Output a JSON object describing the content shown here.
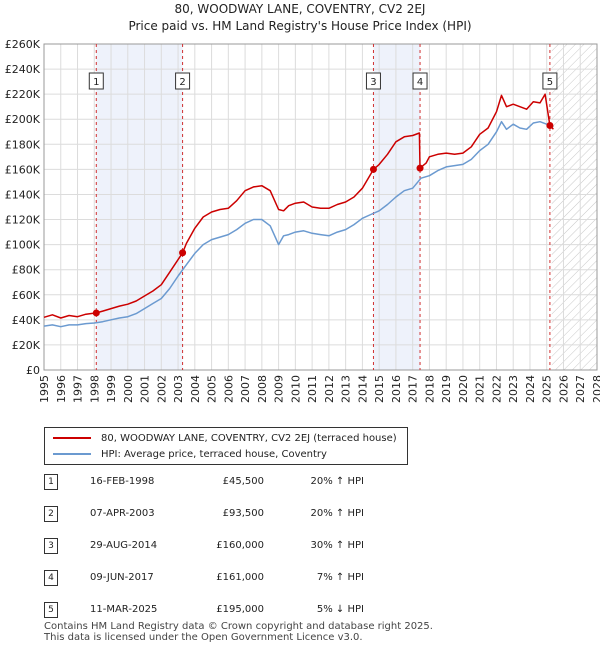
{
  "header": {
    "title_line1": "80, WOODWAY LANE, COVENTRY, CV2 2EJ",
    "title_line2": "Price paid vs. HM Land Registry's House Price Index (HPI)"
  },
  "chart_data": {
    "type": "line",
    "title": "80, WOODWAY LANE, COVENTRY, CV2 2EJ — Price paid vs. HM Land Registry's House Price Index (HPI)",
    "xlabel": "",
    "ylabel": "",
    "xlim": [
      1995,
      2028
    ],
    "ylim": [
      0,
      260000
    ],
    "y_ticks": [
      0,
      20000,
      40000,
      60000,
      80000,
      100000,
      120000,
      140000,
      160000,
      180000,
      200000,
      220000,
      240000,
      260000
    ],
    "y_tick_labels": [
      "£0",
      "£20K",
      "£40K",
      "£60K",
      "£80K",
      "£100K",
      "£120K",
      "£140K",
      "£160K",
      "£180K",
      "£200K",
      "£220K",
      "£240K",
      "£260K"
    ],
    "x_ticks": [
      1995,
      1996,
      1997,
      1998,
      1999,
      2000,
      2001,
      2002,
      2003,
      2004,
      2005,
      2006,
      2007,
      2008,
      2009,
      2010,
      2011,
      2012,
      2013,
      2014,
      2015,
      2016,
      2017,
      2018,
      2019,
      2020,
      2021,
      2022,
      2023,
      2024,
      2025,
      2026,
      2027,
      2028
    ],
    "grid": true,
    "future_shaded_from": 2025.3,
    "series": [
      {
        "name": "80, WOODWAY LANE, COVENTRY, CV2 2EJ (terraced house)",
        "color": "#cc0000",
        "x": [
          1995.0,
          1995.5,
          1996.0,
          1996.5,
          1997.0,
          1997.5,
          1998.12,
          1998.5,
          1999.0,
          1999.5,
          2000.0,
          2000.5,
          2001.0,
          2001.5,
          2002.0,
          2002.5,
          2003.27,
          2003.5,
          2004.0,
          2004.5,
          2005.0,
          2005.5,
          2006.0,
          2006.5,
          2007.0,
          2007.5,
          2008.0,
          2008.5,
          2009.0,
          2009.3,
          2009.6,
          2010.0,
          2010.5,
          2011.0,
          2011.5,
          2012.0,
          2012.5,
          2013.0,
          2013.5,
          2014.0,
          2014.66,
          2015.0,
          2015.5,
          2016.0,
          2016.5,
          2017.0,
          2017.4,
          2017.44,
          2017.8,
          2018.0,
          2018.5,
          2019.0,
          2019.5,
          2020.0,
          2020.5,
          2021.0,
          2021.5,
          2022.0,
          2022.3,
          2022.6,
          2023.0,
          2023.4,
          2023.8,
          2024.2,
          2024.6,
          2024.9,
          2025.19,
          2025.4
        ],
        "values": [
          42000,
          44000,
          41500,
          43500,
          42500,
          44500,
          45500,
          47000,
          49000,
          51000,
          52500,
          55000,
          59000,
          63000,
          68000,
          78000,
          93500,
          101000,
          113000,
          122000,
          126000,
          128000,
          129000,
          135000,
          143000,
          146000,
          147000,
          143000,
          128000,
          127000,
          131000,
          133000,
          134000,
          130000,
          129000,
          129000,
          132000,
          134000,
          138000,
          145000,
          160000,
          164000,
          172000,
          182000,
          186000,
          187000,
          189000,
          161000,
          165000,
          170000,
          172000,
          173000,
          172000,
          173000,
          178000,
          188000,
          193000,
          206000,
          219000,
          210000,
          212000,
          210000,
          208000,
          214000,
          213000,
          220000,
          195000,
          192000
        ]
      },
      {
        "name": "HPI: Average price, terraced house, Coventry",
        "color": "#6b9ad0",
        "x": [
          1995.0,
          1995.5,
          1996.0,
          1996.5,
          1997.0,
          1997.5,
          1998.0,
          1998.5,
          1999.0,
          1999.5,
          2000.0,
          2000.5,
          2001.0,
          2001.5,
          2002.0,
          2002.5,
          2003.0,
          2003.5,
          2004.0,
          2004.5,
          2005.0,
          2005.5,
          2006.0,
          2006.5,
          2007.0,
          2007.5,
          2008.0,
          2008.5,
          2009.0,
          2009.3,
          2009.6,
          2010.0,
          2010.5,
          2011.0,
          2011.5,
          2012.0,
          2012.5,
          2013.0,
          2013.5,
          2014.0,
          2014.5,
          2015.0,
          2015.5,
          2016.0,
          2016.5,
          2017.0,
          2017.5,
          2018.0,
          2018.5,
          2019.0,
          2019.5,
          2020.0,
          2020.5,
          2021.0,
          2021.5,
          2022.0,
          2022.3,
          2022.6,
          2023.0,
          2023.4,
          2023.8,
          2024.2,
          2024.6,
          2025.0,
          2025.4
        ],
        "values": [
          35000,
          36000,
          34500,
          36000,
          36000,
          37000,
          37500,
          38500,
          40000,
          41500,
          42500,
          45000,
          49000,
          53000,
          57000,
          65000,
          75000,
          84000,
          93000,
          100000,
          104000,
          106000,
          108000,
          112000,
          117000,
          120000,
          120000,
          115000,
          100000,
          107000,
          108000,
          110000,
          111000,
          109000,
          108000,
          107000,
          110000,
          112000,
          116000,
          121000,
          124000,
          127000,
          132000,
          138000,
          143000,
          145000,
          153000,
          155000,
          159000,
          162000,
          163000,
          164000,
          168000,
          175000,
          180000,
          190000,
          198000,
          192000,
          196000,
          193000,
          192000,
          197000,
          198000,
          196000,
          194000
        ]
      }
    ],
    "sales": [
      {
        "label": "1",
        "x": 1998.12,
        "price": 45500
      },
      {
        "label": "2",
        "x": 2003.27,
        "price": 93500
      },
      {
        "label": "3",
        "x": 2014.66,
        "price": 160000
      },
      {
        "label": "4",
        "x": 2017.44,
        "price": 161000
      },
      {
        "label": "5",
        "x": 2025.19,
        "price": 195000
      }
    ]
  },
  "legend": {
    "property_label": "80, WOODWAY LANE, COVENTRY, CV2 2EJ (terraced house)",
    "hpi_label": "HPI: Average price, terraced house, Coventry"
  },
  "table": {
    "rows": [
      {
        "num": "1",
        "date": "16-FEB-1998",
        "price": "£45,500",
        "hpi": "20% ↑ HPI"
      },
      {
        "num": "2",
        "date": "07-APR-2003",
        "price": "£93,500",
        "hpi": "20% ↑ HPI"
      },
      {
        "num": "3",
        "date": "29-AUG-2014",
        "price": "£160,000",
        "hpi": "30% ↑ HPI"
      },
      {
        "num": "4",
        "date": "09-JUN-2017",
        "price": "£161,000",
        "hpi": "7% ↑ HPI"
      },
      {
        "num": "5",
        "date": "11-MAR-2025",
        "price": "£195,000",
        "hpi": "5% ↓ HPI"
      }
    ]
  },
  "footer": {
    "line1": "Contains HM Land Registry data © Crown copyright and database right 2025.",
    "line2": "This data is licensed under the Open Government Licence v3.0."
  }
}
